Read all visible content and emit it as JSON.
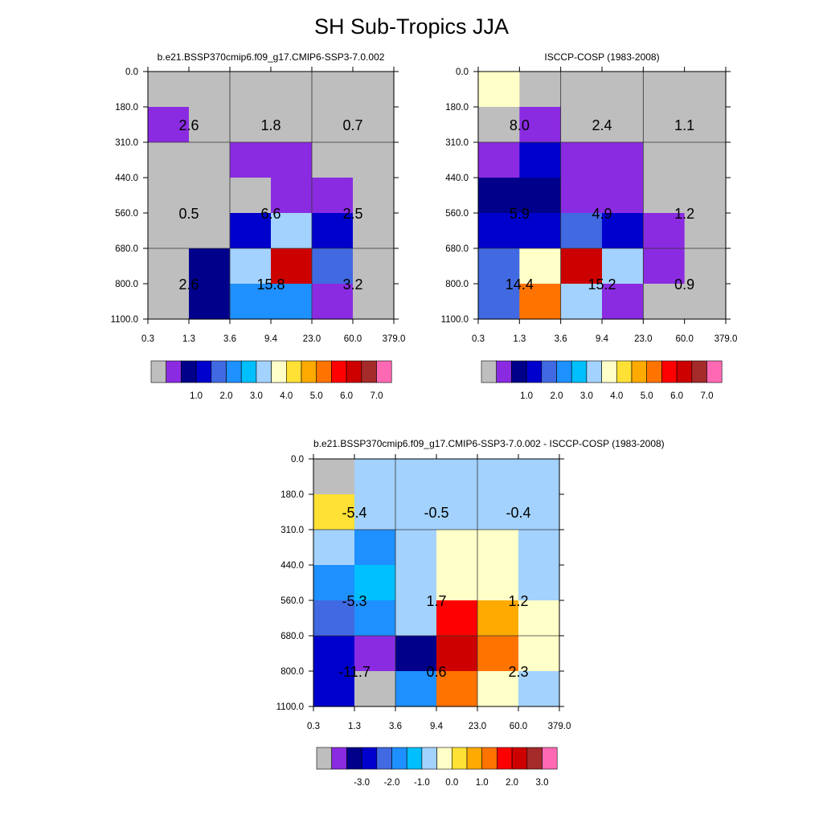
{
  "title": "SH Sub-Tropics JJA",
  "palette": {
    "colors": [
      "#bebebe",
      "#8a2be2",
      "#00008b",
      "#0000cd",
      "#4169e1",
      "#1e90ff",
      "#00bfff",
      "#a3d2ff",
      "#ffffc8",
      "#ffe135",
      "#ffaa00",
      "#ff7300",
      "#ff0000",
      "#cd0000",
      "#a52a2a",
      "#ff69b4"
    ]
  },
  "chart_data": [
    {
      "type": "heatmap",
      "title": "b.e21.BSSP370cmip6.f09_g17.CMIP6-SSP3-7.0.002",
      "x_ticks": [
        "0.3",
        "1.3",
        "3.6",
        "9.4",
        "23.0",
        "60.0",
        "379.0"
      ],
      "y_ticks": [
        "0.0",
        "180.0",
        "310.0",
        "440.0",
        "560.0",
        "680.0",
        "800.0",
        "1100.0"
      ],
      "cell_color_index": [
        [
          0,
          0,
          0,
          0,
          0,
          0
        ],
        [
          1,
          0,
          0,
          0,
          0,
          0
        ],
        [
          0,
          0,
          1,
          1,
          0,
          0
        ],
        [
          0,
          0,
          0,
          1,
          1,
          0
        ],
        [
          0,
          0,
          3,
          7,
          3,
          0
        ],
        [
          0,
          2,
          7,
          13,
          4,
          0
        ],
        [
          0,
          2,
          5,
          5,
          1,
          0
        ]
      ],
      "block_labels": [
        {
          "row": 0,
          "col": 0,
          "text": "2.6"
        },
        {
          "row": 0,
          "col": 1,
          "text": "1.8"
        },
        {
          "row": 0,
          "col": 2,
          "text": "0.7"
        },
        {
          "row": 1,
          "col": 0,
          "text": "0.5"
        },
        {
          "row": 1,
          "col": 1,
          "text": "6.6"
        },
        {
          "row": 1,
          "col": 2,
          "text": "2.5"
        },
        {
          "row": 2,
          "col": 0,
          "text": "2.6"
        },
        {
          "row": 2,
          "col": 1,
          "text": "15.8"
        },
        {
          "row": 2,
          "col": 2,
          "text": "3.2"
        }
      ],
      "colorbar_labels": [
        "1.0",
        "2.0",
        "3.0",
        "4.0",
        "5.0",
        "6.0",
        "7.0"
      ]
    },
    {
      "type": "heatmap",
      "title": "ISCCP-COSP (1983-2008)",
      "x_ticks": [
        "0.3",
        "1.3",
        "3.6",
        "9.4",
        "23.0",
        "60.0",
        "379.0"
      ],
      "y_ticks": [
        "0.0",
        "180.0",
        "310.0",
        "440.0",
        "560.0",
        "680.0",
        "800.0",
        "1100.0"
      ],
      "cell_color_index": [
        [
          8,
          0,
          0,
          0,
          0,
          0
        ],
        [
          0,
          1,
          0,
          0,
          0,
          0
        ],
        [
          1,
          3,
          1,
          1,
          0,
          0
        ],
        [
          2,
          2,
          1,
          1,
          0,
          0
        ],
        [
          3,
          3,
          4,
          3,
          1,
          0
        ],
        [
          4,
          8,
          13,
          7,
          1,
          0
        ],
        [
          4,
          11,
          7,
          1,
          0,
          0
        ]
      ],
      "block_labels": [
        {
          "row": 0,
          "col": 0,
          "text": "8.0"
        },
        {
          "row": 0,
          "col": 1,
          "text": "2.4"
        },
        {
          "row": 0,
          "col": 2,
          "text": "1.1"
        },
        {
          "row": 1,
          "col": 0,
          "text": "5.9"
        },
        {
          "row": 1,
          "col": 1,
          "text": "4.9"
        },
        {
          "row": 1,
          "col": 2,
          "text": "1.2"
        },
        {
          "row": 2,
          "col": 0,
          "text": "14.4"
        },
        {
          "row": 2,
          "col": 1,
          "text": "15.2"
        },
        {
          "row": 2,
          "col": 2,
          "text": "0.9"
        }
      ],
      "colorbar_labels": [
        "1.0",
        "2.0",
        "3.0",
        "4.0",
        "5.0",
        "6.0",
        "7.0"
      ]
    },
    {
      "type": "heatmap",
      "title": "b.e21.BSSP370cmip6.f09_g17.CMIP6-SSP3-7.0.002 - ISCCP-COSP (1983-2008)",
      "x_ticks": [
        "0.3",
        "1.3",
        "3.6",
        "9.4",
        "23.0",
        "60.0",
        "379.0"
      ],
      "y_ticks": [
        "0.0",
        "180.0",
        "310.0",
        "440.0",
        "560.0",
        "680.0",
        "800.0",
        "1100.0"
      ],
      "cell_color_index": [
        [
          0,
          7,
          7,
          7,
          7,
          7
        ],
        [
          9,
          7,
          7,
          7,
          7,
          7
        ],
        [
          7,
          5,
          7,
          8,
          8,
          7
        ],
        [
          5,
          6,
          7,
          8,
          8,
          7
        ],
        [
          4,
          5,
          7,
          12,
          10,
          8
        ],
        [
          3,
          1,
          2,
          13,
          11,
          8
        ],
        [
          3,
          0,
          5,
          11,
          8,
          7
        ]
      ],
      "block_labels": [
        {
          "row": 0,
          "col": 0,
          "text": "-5.4"
        },
        {
          "row": 0,
          "col": 1,
          "text": "-0.5"
        },
        {
          "row": 0,
          "col": 2,
          "text": "-0.4"
        },
        {
          "row": 1,
          "col": 0,
          "text": "-5.3"
        },
        {
          "row": 1,
          "col": 1,
          "text": "1.7"
        },
        {
          "row": 1,
          "col": 2,
          "text": "1.2"
        },
        {
          "row": 2,
          "col": 0,
          "text": "-11.7"
        },
        {
          "row": 2,
          "col": 1,
          "text": "0.6"
        },
        {
          "row": 2,
          "col": 2,
          "text": "2.3"
        }
      ],
      "colorbar_labels": [
        "-3.0",
        "-2.0",
        "-1.0",
        "0.0",
        "1.0",
        "2.0",
        "3.0"
      ]
    }
  ]
}
